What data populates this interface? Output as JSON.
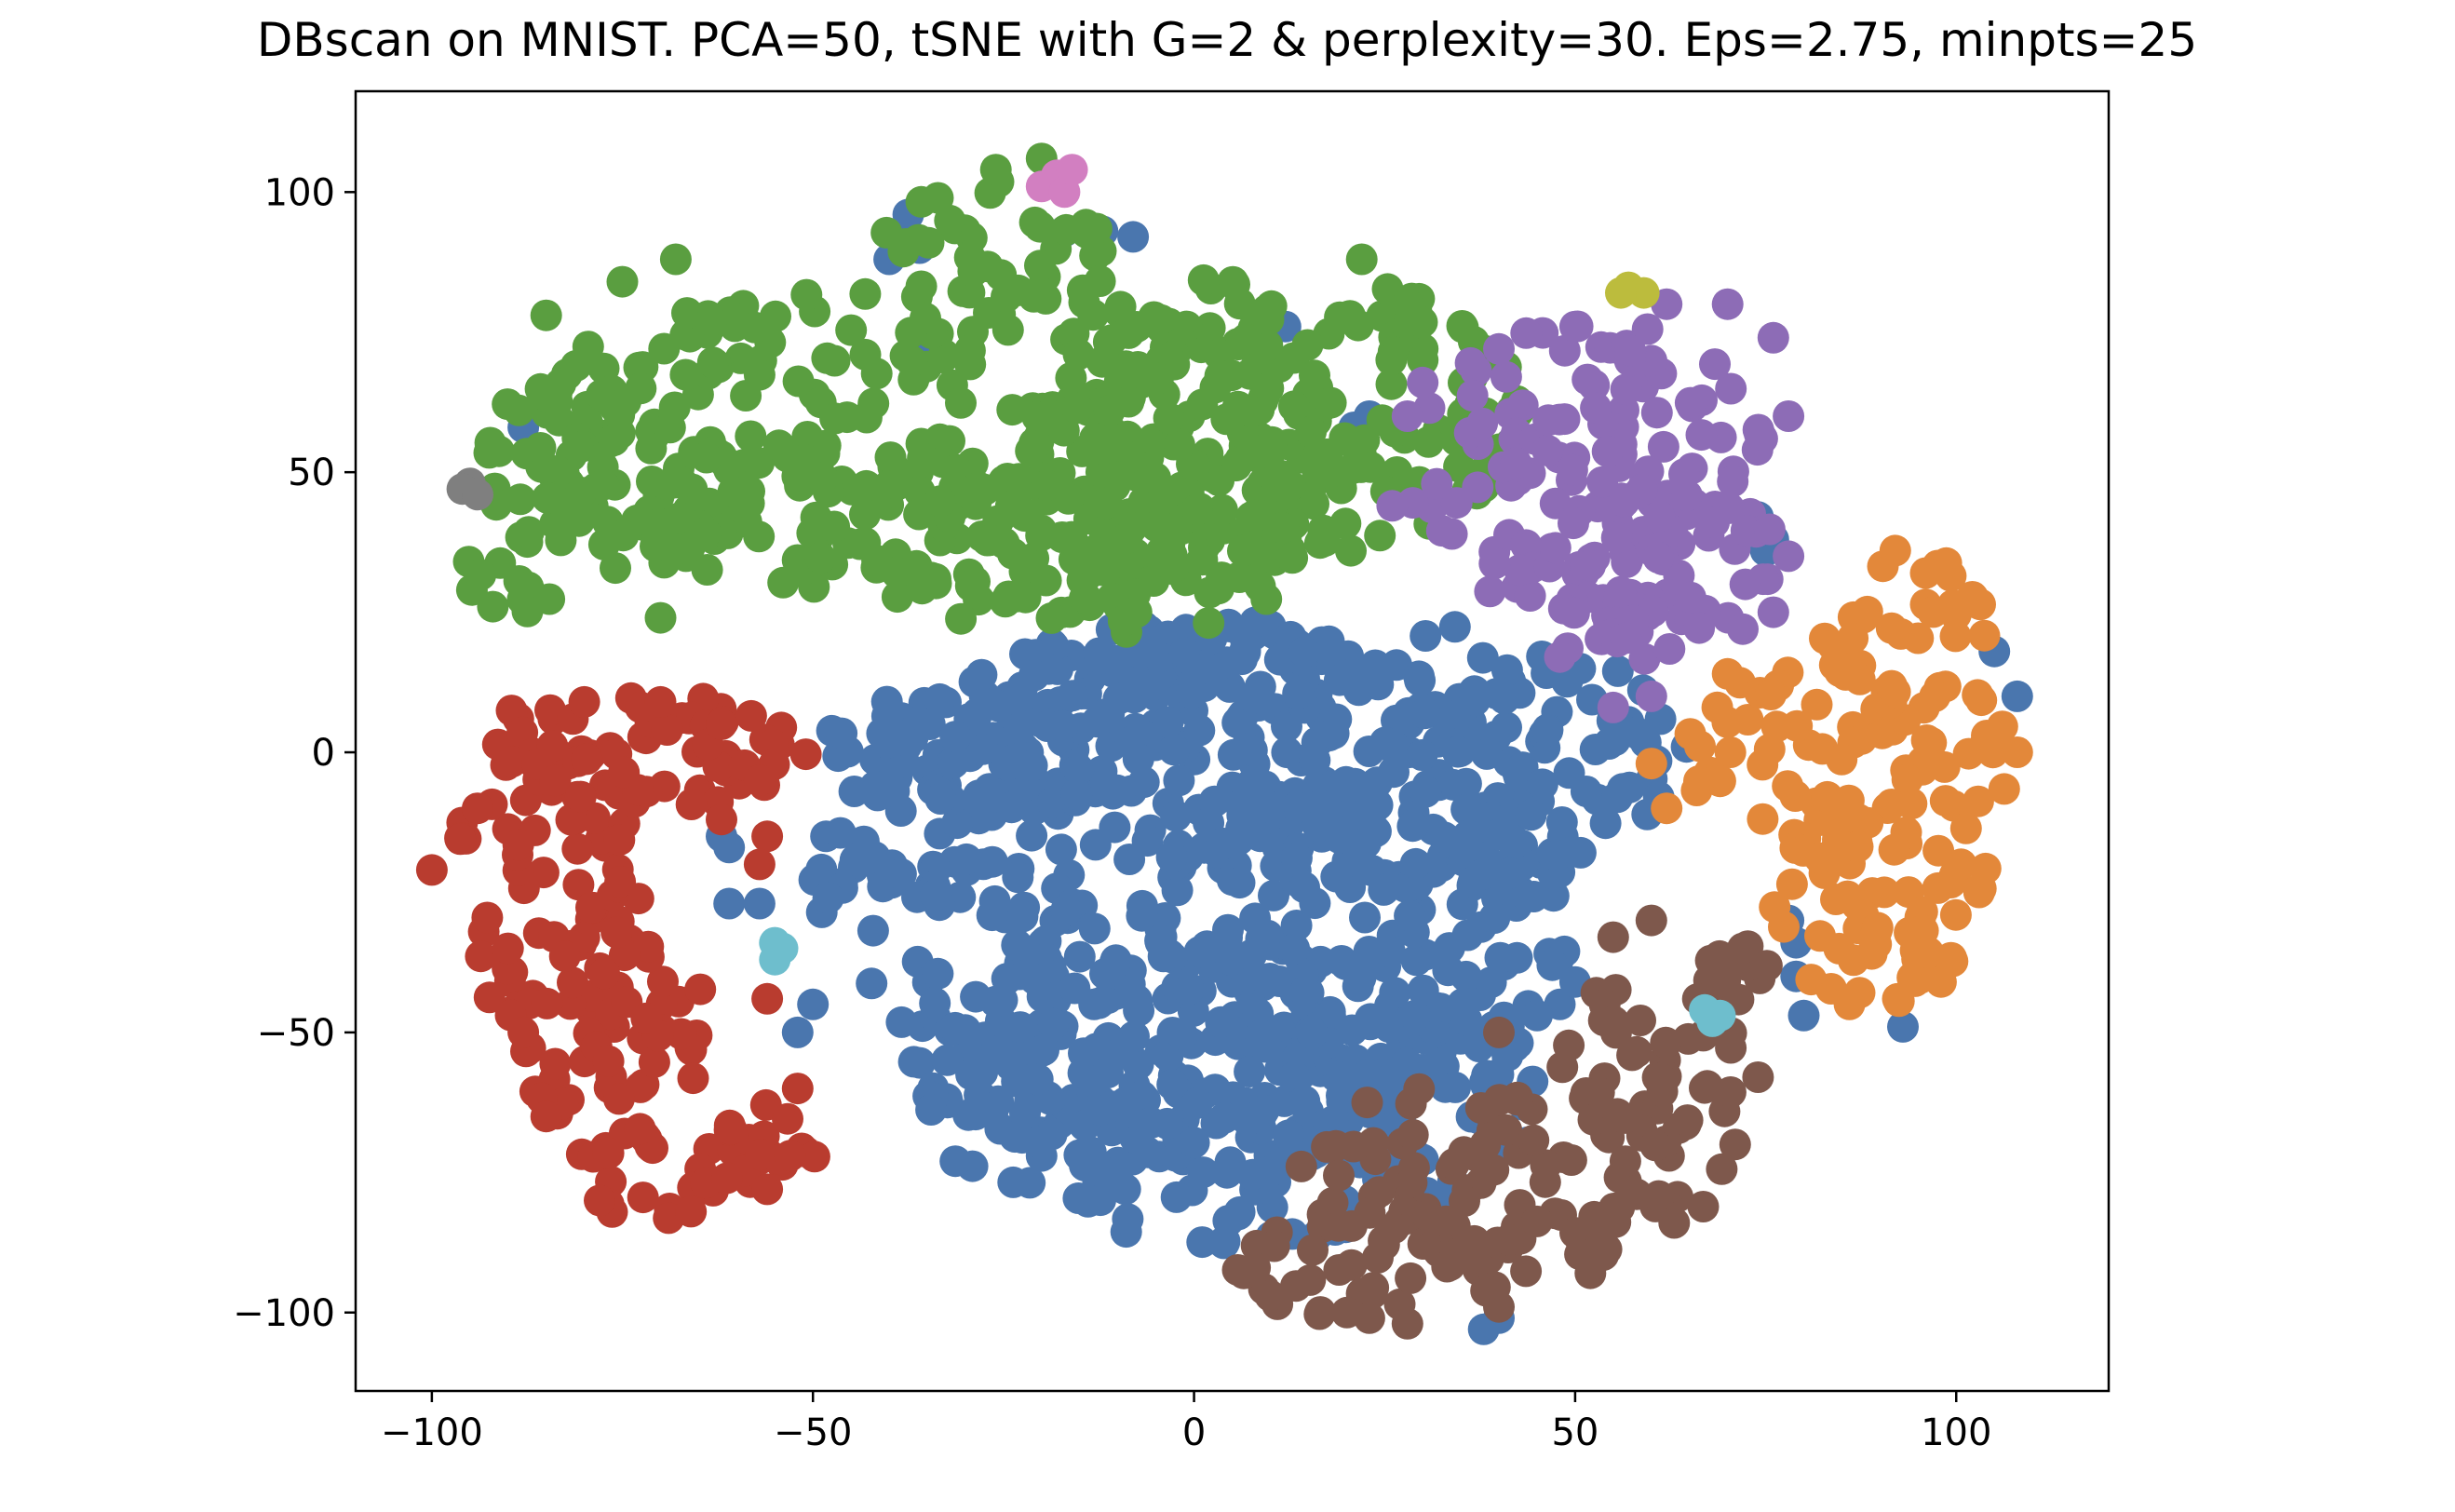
{
  "chart_data": {
    "type": "scatter",
    "title": "DBscan on MNIST. PCA=50, tSNE with G=2 & perplexity=30. Eps=2.75, minpts=25",
    "xlabel": "",
    "ylabel": "",
    "xlim": [
      -110,
      120
    ],
    "ylim": [
      -114,
      118
    ],
    "grid": false,
    "legend": "none",
    "x_ticks": [
      {
        "value": -100,
        "label": "−100"
      },
      {
        "value": -50,
        "label": "−50"
      },
      {
        "value": 0,
        "label": "0"
      },
      {
        "value": 50,
        "label": "50"
      },
      {
        "value": 100,
        "label": "100"
      }
    ],
    "y_ticks": [
      {
        "value": 100,
        "label": "100"
      },
      {
        "value": 50,
        "label": "50"
      },
      {
        "value": 0,
        "label": "0"
      },
      {
        "value": -50,
        "label": "−50"
      },
      {
        "value": -100,
        "label": "−100"
      }
    ],
    "clusters": [
      {
        "id": "blue",
        "color": "#4a76ae",
        "regions": [
          {
            "center": [
              0,
              -25
            ],
            "radius": [
              50,
              50
            ]
          },
          {
            "center": [
              5,
              -60
            ],
            "radius": [
              42,
              28
            ]
          },
          {
            "center": [
              20,
              0
            ],
            "radius": [
              45,
              25
            ]
          },
          {
            "center": [
              -25,
              2
            ],
            "radius": [
              25,
              12
            ]
          }
        ],
        "points": [
          [
            -37.5,
            96
          ],
          [
            -36,
            90
          ],
          [
            -40,
            88
          ],
          [
            -35,
            72
          ],
          [
            -33,
            71
          ],
          [
            -17,
            93
          ],
          [
            -12,
            93
          ],
          [
            -8,
            92
          ],
          [
            8,
            76
          ],
          [
            12,
            76
          ],
          [
            -88,
            58
          ],
          [
            21,
            58
          ],
          [
            23,
            60
          ],
          [
            75,
            40
          ],
          [
            76,
            38
          ],
          [
            75,
            36
          ],
          [
            74,
            42
          ],
          [
            105,
            18
          ],
          [
            108,
            10
          ],
          [
            -62,
            -15
          ],
          [
            -61,
            -17
          ],
          [
            -61,
            -27
          ],
          [
            -57,
            -27
          ],
          [
            -48,
            -26
          ],
          [
            -52,
            -50
          ],
          [
            -50,
            -45
          ],
          [
            79,
            -34
          ],
          [
            79,
            -40
          ],
          [
            78,
            -30
          ],
          [
            80,
            -47
          ],
          [
            93,
            -49
          ],
          [
            47,
            -38
          ],
          [
            48,
            -45
          ],
          [
            45,
            -47
          ],
          [
            50,
            -41
          ],
          [
            29,
            -47
          ],
          [
            38,
            -103
          ],
          [
            40,
            -101
          ]
        ]
      },
      {
        "id": "green",
        "color": "#5a9e40",
        "regions": [
          {
            "center": [
              -35,
              55
            ],
            "radius": [
              58,
              28
            ]
          },
          {
            "center": [
              10,
              60
            ],
            "radius": [
              33,
              26
            ]
          },
          {
            "center": [
              -25,
              90
            ],
            "radius": [
              16,
              12
            ]
          },
          {
            "center": [
              -15,
              35
            ],
            "radius": [
              30,
              15
            ]
          },
          {
            "center": [
              -75,
              50
            ],
            "radius": [
              18,
              18
            ]
          },
          {
            "center": [
              -90,
              32
            ],
            "radius": [
              7,
              8
            ]
          }
        ],
        "points": [
          [
            -68,
            88
          ],
          [
            -75,
            84
          ],
          [
            -85,
            78
          ],
          [
            -26,
            104
          ],
          [
            -20,
            106
          ],
          [
            22,
            88
          ],
          [
            28,
            80
          ],
          [
            30,
            70
          ],
          [
            -92,
            26
          ],
          [
            -70,
            24
          ]
        ]
      },
      {
        "id": "red",
        "color": "#b93c2f",
        "regions": [
          {
            "center": [
              -85,
              -20
            ],
            "radius": [
              13,
              30
            ]
          },
          {
            "center": [
              -76,
              -50
            ],
            "radius": [
              12,
              22
            ]
          },
          {
            "center": [
              -68,
              -75
            ],
            "radius": [
              14,
              9
            ]
          },
          {
            "center": [
              -70,
              0
            ],
            "radius": [
              20,
              10
            ]
          },
          {
            "center": [
              -56,
              -70
            ],
            "radius": [
              7,
              10
            ]
          },
          {
            "center": [
              -60,
              0
            ],
            "radius": [
              6,
              8
            ]
          }
        ],
        "points": [
          [
            -100,
            -21
          ],
          [
            -94,
            -10
          ],
          [
            -80,
            9
          ],
          [
            -70,
            9
          ],
          [
            -62,
            5
          ],
          [
            -57,
            -5
          ],
          [
            -56,
            -15
          ],
          [
            -57,
            -20
          ],
          [
            -90,
            -35
          ],
          [
            -88,
            -50
          ],
          [
            -85,
            -65
          ],
          [
            -78,
            -80
          ],
          [
            -66,
            -82
          ],
          [
            -56,
            -78
          ],
          [
            -53,
            -72
          ],
          [
            -52,
            -60
          ],
          [
            -56,
            -44
          ],
          [
            -62,
            -12
          ]
        ]
      },
      {
        "id": "purple",
        "color": "#8d6cb6",
        "regions": [
          {
            "center": [
              52,
              50
            ],
            "radius": [
              24,
              27
            ]
          },
          {
            "center": [
              62,
              35
            ],
            "radius": [
              15,
              14
            ]
          },
          {
            "center": [
              55,
              24
            ],
            "radius": [
              10,
              10
            ]
          }
        ],
        "points": [
          [
            28,
            60
          ],
          [
            26,
            44
          ],
          [
            30,
            66
          ],
          [
            40,
            72
          ],
          [
            50,
            76
          ],
          [
            62,
            80
          ],
          [
            70,
            80
          ],
          [
            76,
            74
          ],
          [
            78,
            60
          ],
          [
            78,
            35
          ],
          [
            76,
            25
          ],
          [
            72,
            22
          ],
          [
            60,
            10
          ],
          [
            55,
            8
          ],
          [
            48,
            17
          ]
        ]
      },
      {
        "id": "orange",
        "color": "#e3883a",
        "regions": [
          {
            "center": [
              86,
              0
            ],
            "radius": [
              22,
              17
            ]
          },
          {
            "center": [
              93,
              22
            ],
            "radius": [
              11,
              14
            ]
          },
          {
            "center": [
              91,
              -25
            ],
            "radius": [
              15,
              18
            ]
          },
          {
            "center": [
              91,
              -38
            ],
            "radius": [
              11,
              7
            ]
          }
        ],
        "points": [
          [
            60,
            -2
          ],
          [
            62,
            -10
          ],
          [
            104,
            3
          ],
          [
            108,
            0
          ],
          [
            92,
            36
          ],
          [
            96,
            32
          ],
          [
            86,
            -45
          ],
          [
            98,
            -41
          ],
          [
            103,
            -25
          ],
          [
            70,
            14
          ]
        ]
      },
      {
        "id": "brown",
        "color": "#7e584c",
        "regions": [
          {
            "center": [
              42,
              -75
            ],
            "radius": [
              28,
              18
            ]
          },
          {
            "center": [
              25,
              -92
            ],
            "radius": [
              20,
              10
            ]
          },
          {
            "center": [
              60,
              -55
            ],
            "radius": [
              12,
              16
            ]
          },
          {
            "center": [
              70,
              -38
            ],
            "radius": [
              7,
              8
            ]
          }
        ],
        "points": [
          [
            8,
            -92
          ],
          [
            10,
            -97
          ],
          [
            23,
            -101
          ],
          [
            28,
            -102
          ],
          [
            40,
            -99
          ],
          [
            52,
            -93
          ],
          [
            63,
            -84
          ],
          [
            71,
            -70
          ],
          [
            74,
            -58
          ],
          [
            72,
            -35
          ],
          [
            60,
            -30
          ],
          [
            55,
            -33
          ],
          [
            40,
            -50
          ]
        ]
      },
      {
        "id": "pink",
        "color": "#d27fc1",
        "regions": [],
        "points": [
          [
            -18,
            103
          ],
          [
            -20,
            101
          ],
          [
            -17,
            100
          ],
          [
            -16,
            104
          ]
        ]
      },
      {
        "id": "olive",
        "color": "#bcbc3d",
        "regions": [],
        "points": [
          [
            57,
            83
          ],
          [
            59,
            82
          ],
          [
            56,
            82
          ]
        ]
      },
      {
        "id": "gray",
        "color": "#7f7f7f",
        "regions": [],
        "points": [
          [
            -95,
            48
          ],
          [
            -96,
            47
          ],
          [
            -94,
            46
          ]
        ]
      },
      {
        "id": "cyan",
        "color": "#6ebecd",
        "regions": [],
        "points": [
          [
            -55,
            -34
          ],
          [
            -55,
            -37
          ],
          [
            -54,
            -35
          ],
          [
            67,
            -46
          ],
          [
            69,
            -47
          ],
          [
            68,
            -48
          ]
        ]
      }
    ]
  }
}
